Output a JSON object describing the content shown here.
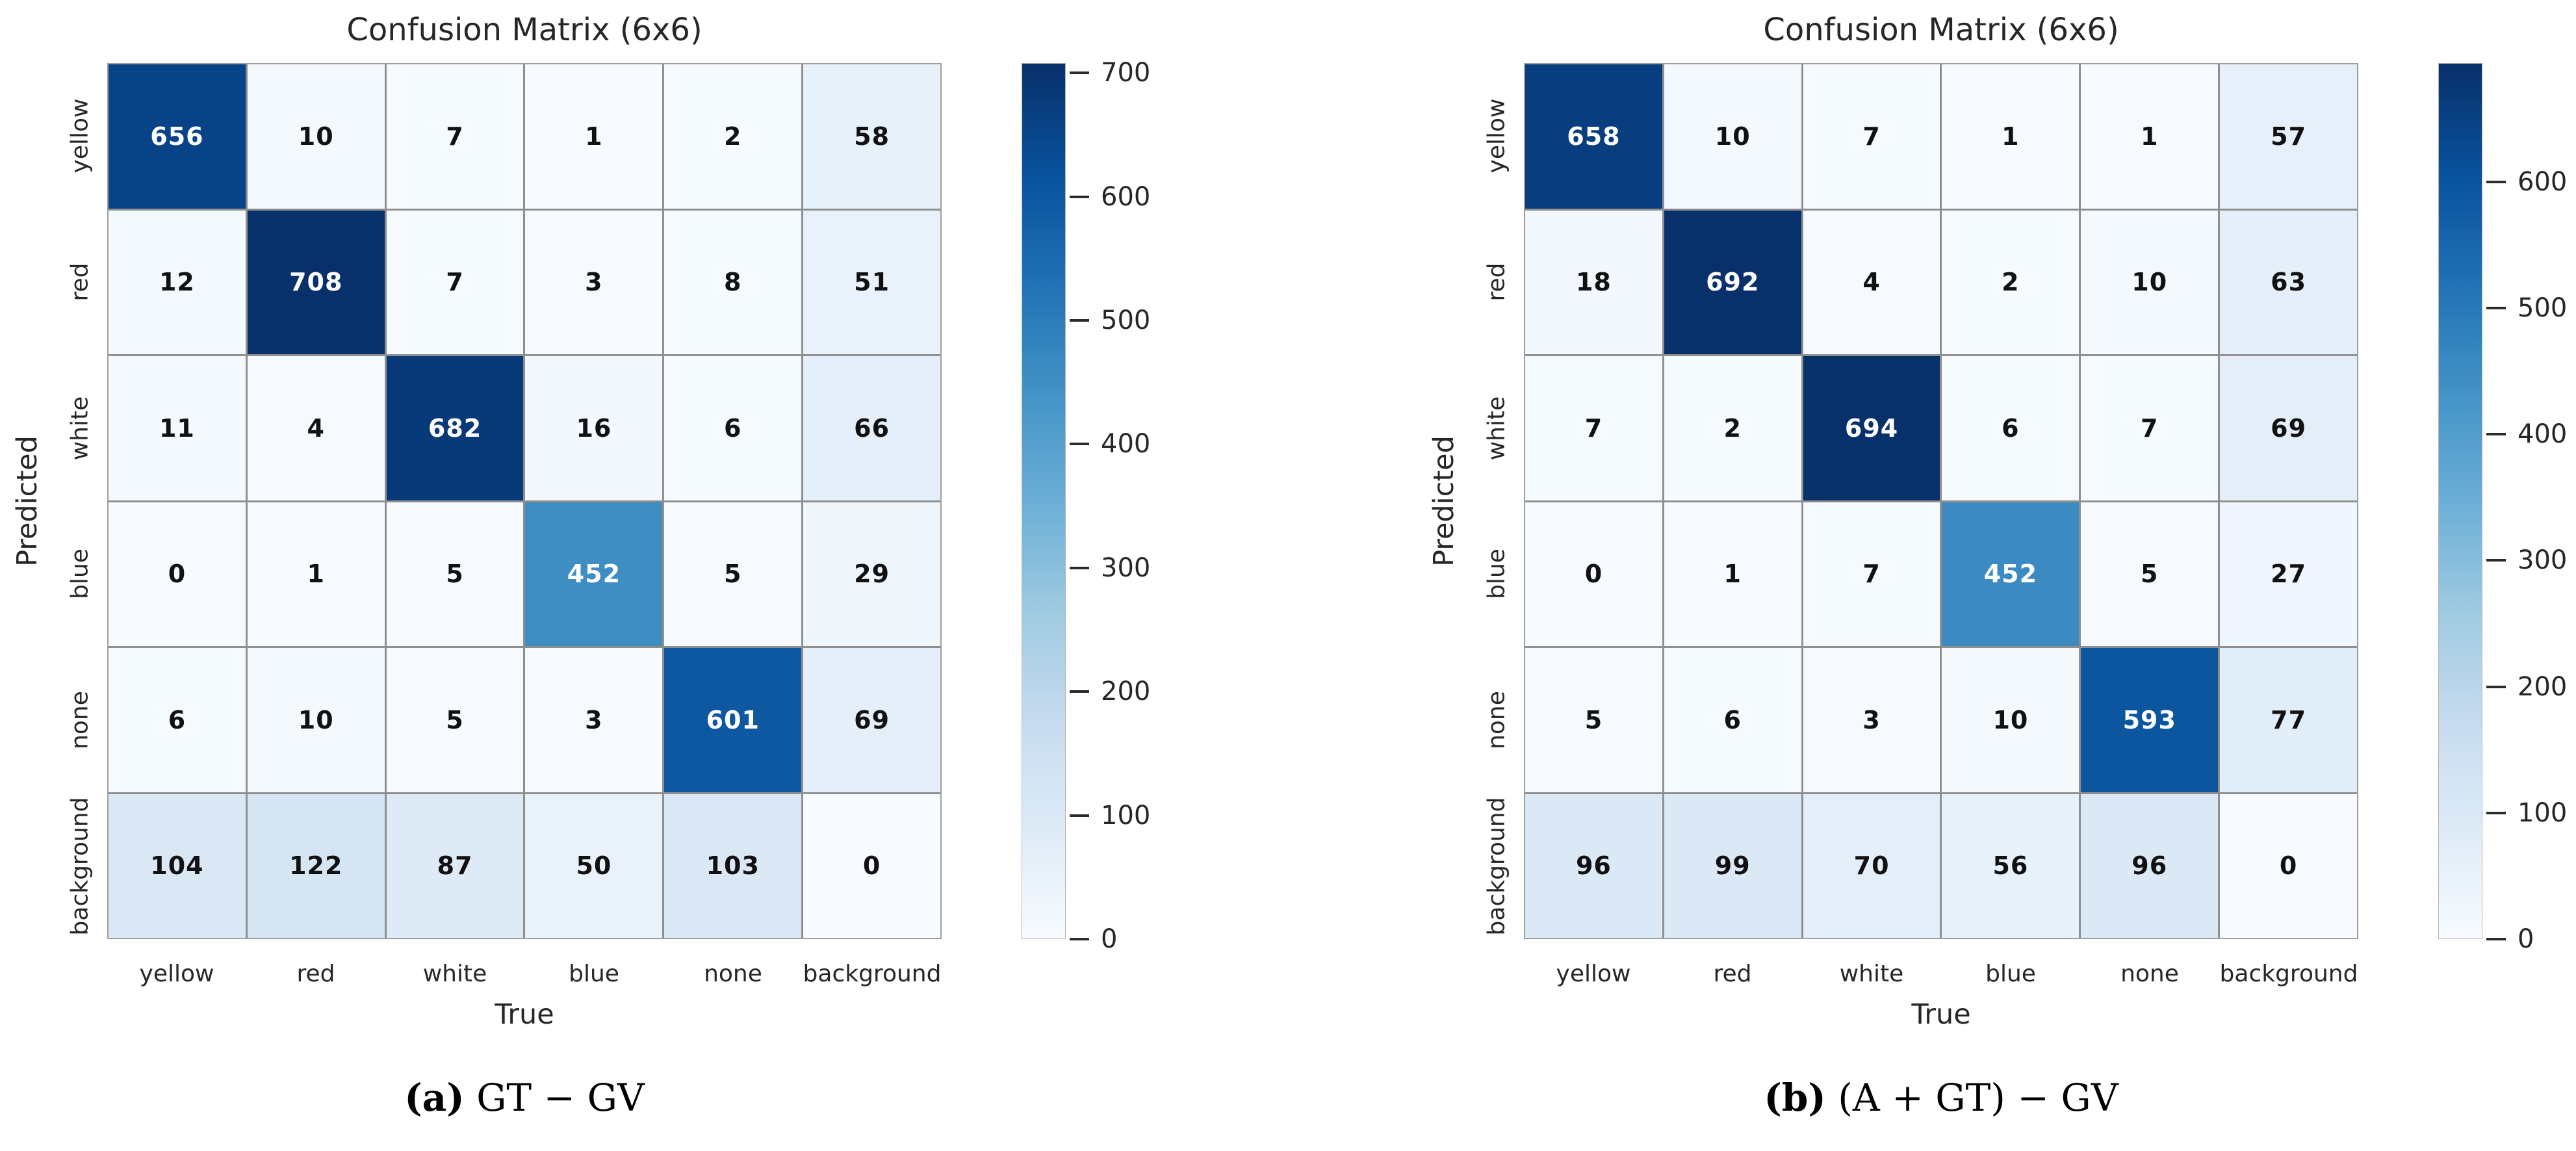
{
  "colormap": {
    "name": "Blues",
    "anchors": [
      [
        0.0,
        "#f7fbff"
      ],
      [
        0.125,
        "#deebf7"
      ],
      [
        0.25,
        "#c6dbef"
      ],
      [
        0.375,
        "#9ecae1"
      ],
      [
        0.5,
        "#6baed6"
      ],
      [
        0.625,
        "#4292c6"
      ],
      [
        0.75,
        "#2171b5"
      ],
      [
        0.875,
        "#08519c"
      ],
      [
        1.0,
        "#08306b"
      ]
    ]
  },
  "chart_data": [
    {
      "type": "heatmap",
      "title": "Confusion Matrix (6x6)",
      "xlabel": "True",
      "ylabel": "Predicted",
      "x_categories": [
        "yellow",
        "red",
        "white",
        "blue",
        "none",
        "background"
      ],
      "y_categories": [
        "yellow",
        "red",
        "white",
        "blue",
        "none",
        "background"
      ],
      "values": [
        [
          656,
          10,
          7,
          1,
          2,
          58
        ],
        [
          12,
          708,
          7,
          3,
          8,
          51
        ],
        [
          11,
          4,
          682,
          16,
          6,
          66
        ],
        [
          0,
          1,
          5,
          452,
          5,
          29
        ],
        [
          6,
          10,
          5,
          3,
          601,
          69
        ],
        [
          104,
          122,
          87,
          50,
          103,
          0
        ]
      ],
      "vmin": 0,
      "vmax": 708,
      "colorbar_ticks": [
        0,
        100,
        200,
        300,
        400,
        500,
        600,
        700
      ],
      "legend_position": "right",
      "caption": {
        "marker": "(a)",
        "text": "GT − GV"
      }
    },
    {
      "type": "heatmap",
      "title": "Confusion Matrix (6x6)",
      "xlabel": "True",
      "ylabel": "Predicted",
      "x_categories": [
        "yellow",
        "red",
        "white",
        "blue",
        "none",
        "background"
      ],
      "y_categories": [
        "yellow",
        "red",
        "white",
        "blue",
        "none",
        "background"
      ],
      "values": [
        [
          658,
          10,
          7,
          1,
          1,
          57
        ],
        [
          18,
          692,
          4,
          2,
          10,
          63
        ],
        [
          7,
          2,
          694,
          6,
          7,
          69
        ],
        [
          0,
          1,
          7,
          452,
          5,
          27
        ],
        [
          5,
          6,
          3,
          10,
          593,
          77
        ],
        [
          96,
          99,
          70,
          56,
          96,
          0
        ]
      ],
      "vmin": 0,
      "vmax": 694,
      "colorbar_ticks": [
        0,
        100,
        200,
        300,
        400,
        500,
        600
      ],
      "legend_position": "right",
      "caption": {
        "marker": "(b)",
        "text": "(A + GT) − GV"
      }
    }
  ]
}
